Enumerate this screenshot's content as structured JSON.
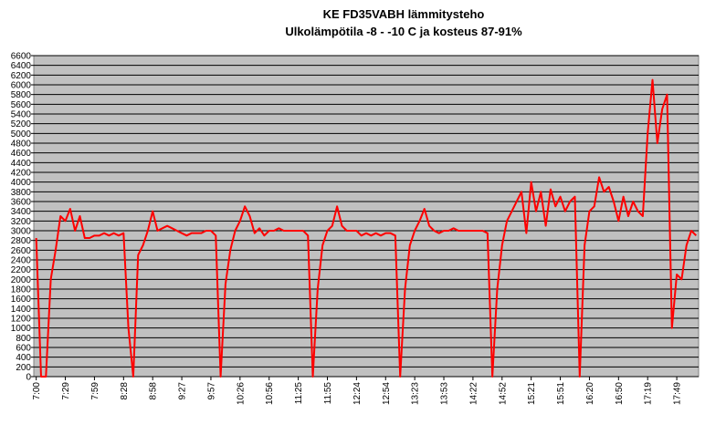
{
  "chart_data": {
    "type": "line",
    "title": "KE FD35VABH lämmitysteho",
    "subtitle": "Ulkolämpötila  -8 - -10 C ja kosteus 87-91%",
    "categories": [
      "7:00",
      null,
      null,
      null,
      null,
      null,
      "7:29",
      null,
      null,
      null,
      null,
      null,
      "7:59",
      null,
      null,
      null,
      null,
      null,
      "8:28",
      null,
      null,
      null,
      null,
      null,
      "8:58",
      null,
      null,
      null,
      null,
      null,
      "9:27",
      null,
      null,
      null,
      null,
      null,
      "9:57",
      null,
      null,
      null,
      null,
      null,
      "10:26",
      null,
      null,
      null,
      null,
      null,
      "10:56",
      null,
      null,
      null,
      null,
      null,
      "11:25",
      null,
      null,
      null,
      null,
      null,
      "11:55",
      null,
      null,
      null,
      null,
      null,
      "12:24",
      null,
      null,
      null,
      null,
      null,
      "12:54",
      null,
      null,
      null,
      null,
      null,
      "13:23",
      null,
      null,
      null,
      null,
      null,
      "13:53",
      null,
      null,
      null,
      null,
      null,
      "14:22",
      null,
      null,
      null,
      null,
      null,
      "14:52",
      null,
      null,
      null,
      null,
      null,
      "15:21",
      null,
      null,
      null,
      null,
      null,
      "15:51",
      null,
      null,
      null,
      null,
      null,
      "16:20",
      null,
      null,
      null,
      null,
      null,
      "16:50",
      null,
      null,
      null,
      null,
      null,
      "17:19",
      null,
      null,
      null,
      null,
      null,
      "17:49",
      null,
      null,
      null,
      null
    ],
    "values": [
      2850,
      0,
      0,
      2000,
      2600,
      3300,
      3200,
      3450,
      3000,
      3300,
      2850,
      2850,
      2900,
      2900,
      2950,
      2900,
      2950,
      2900,
      2950,
      1000,
      0,
      2500,
      2700,
      3000,
      3400,
      3000,
      3050,
      3100,
      3050,
      3000,
      2950,
      2900,
      2950,
      2950,
      2950,
      3000,
      3000,
      2900,
      0,
      1900,
      2600,
      3000,
      3200,
      3500,
      3300,
      2950,
      3050,
      2900,
      3000,
      3000,
      3050,
      3000,
      3000,
      3000,
      3000,
      3000,
      2900,
      0,
      1800,
      2700,
      3000,
      3100,
      3500,
      3100,
      3000,
      3000,
      3000,
      2900,
      2950,
      2900,
      2950,
      2900,
      2950,
      2950,
      2900,
      0,
      1800,
      2700,
      3000,
      3200,
      3450,
      3100,
      3000,
      2950,
      3000,
      3000,
      3050,
      3000,
      3000,
      3000,
      3000,
      3000,
      3000,
      2950,
      0,
      1800,
      2700,
      3200,
      3400,
      3600,
      3800,
      2950,
      4000,
      3400,
      3800,
      3100,
      3850,
      3500,
      3700,
      3400,
      3600,
      3700,
      0,
      2700,
      3400,
      3500,
      4100,
      3800,
      3900,
      3600,
      3200,
      3700,
      3300,
      3600,
      3400,
      3300,
      5000,
      6100,
      4800,
      5500,
      5800,
      1000,
      2100,
      2000,
      2700,
      3000,
      2900
    ],
    "color": "#ff0000",
    "ylim": [
      0,
      6600
    ],
    "yticks": [
      0,
      200,
      400,
      600,
      800,
      1000,
      1200,
      1400,
      1600,
      1800,
      2000,
      2200,
      2400,
      2600,
      2800,
      3000,
      3200,
      3400,
      3600,
      3800,
      4000,
      4200,
      4400,
      4600,
      4800,
      5000,
      5200,
      5400,
      5600,
      5800,
      6000,
      6200,
      6400,
      6600
    ],
    "grid": true
  }
}
